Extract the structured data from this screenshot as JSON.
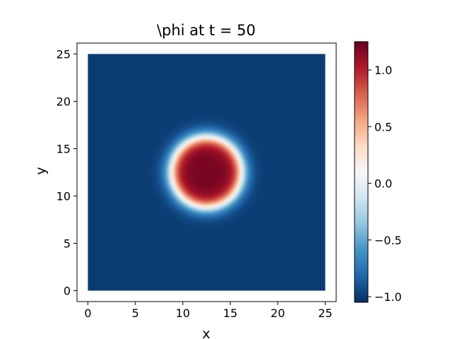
{
  "chart_data": {
    "type": "heatmap",
    "title": "\\phi at t = 50",
    "xlabel": "x",
    "ylabel": "y",
    "xlim": [
      -1.15,
      26.15
    ],
    "ylim": [
      -1.15,
      26.15
    ],
    "x_ticks": [
      0,
      5,
      10,
      15,
      20,
      25
    ],
    "y_ticks": [
      0,
      5,
      10,
      15,
      20,
      25
    ],
    "x_tick_labels": [
      "0",
      "5",
      "10",
      "15",
      "20",
      "25"
    ],
    "y_tick_labels": [
      "0",
      "5",
      "10",
      "15",
      "20",
      "25"
    ],
    "domain": {
      "x": [
        0,
        25
      ],
      "y": [
        0,
        25
      ]
    },
    "field": {
      "description": "circular droplet of phi",
      "center": [
        12.5,
        12.5
      ],
      "inner_value": 1.2,
      "outer_value": -1.0,
      "radius": 3.7,
      "interface_width": 0.9
    },
    "colorbar": {
      "colormap": "RdBu_r",
      "vmin": -1.05,
      "vmax": 1.25,
      "ticks": [
        -1.0,
        -0.5,
        0.0,
        0.5,
        1.0
      ],
      "tick_labels": [
        "−1.0",
        "−0.5",
        "0.0",
        "0.5",
        "1.0"
      ]
    },
    "grid": false
  }
}
